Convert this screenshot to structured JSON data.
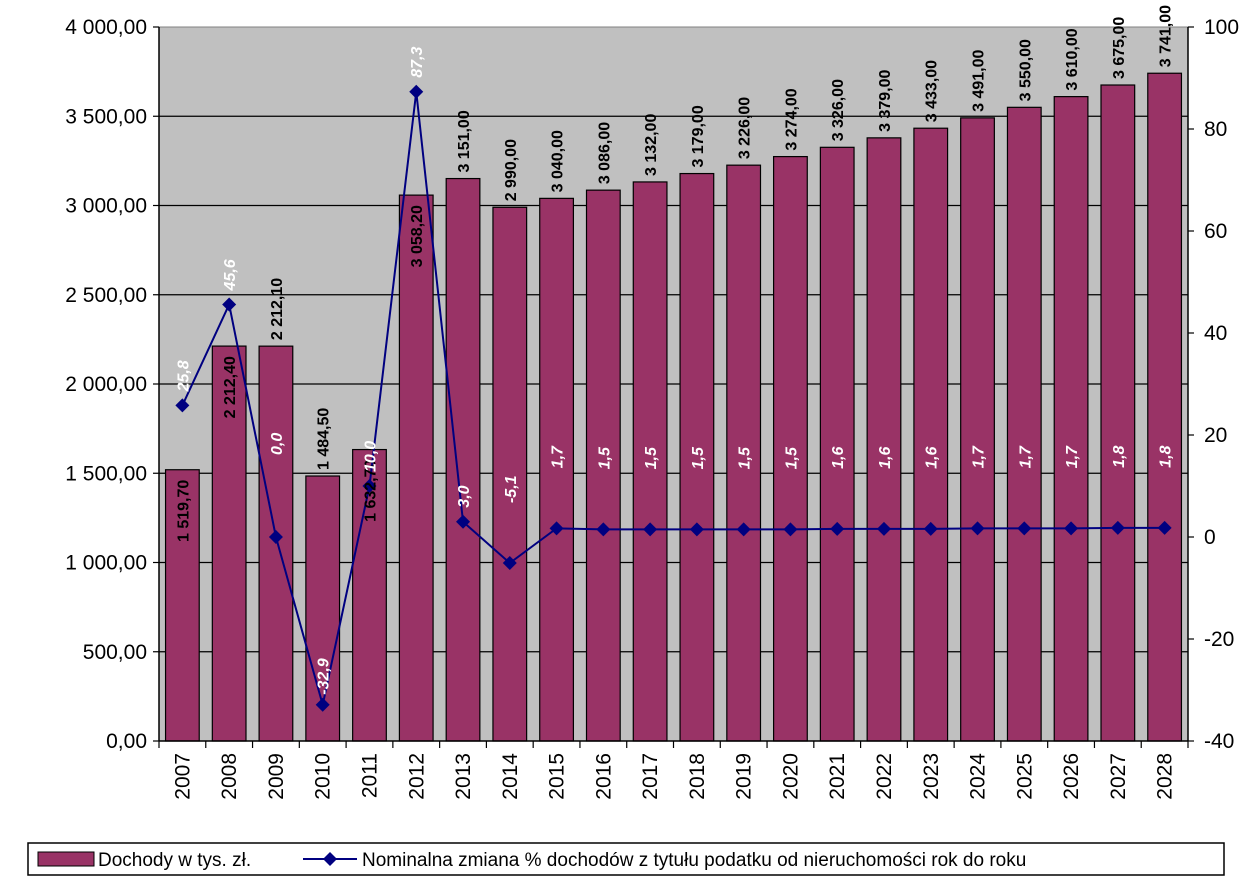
{
  "chart_data": {
    "type": "bar",
    "title": "",
    "xlabel": "",
    "ylabel": "",
    "categories": [
      "2007",
      "2008",
      "2009",
      "2010",
      "2011",
      "2012",
      "2013",
      "2014",
      "2015",
      "2016",
      "2017",
      "2018",
      "2019",
      "2020",
      "2021",
      "2022",
      "2023",
      "2024",
      "2025",
      "2026",
      "2027",
      "2028"
    ],
    "ylim": [
      0,
      4000
    ],
    "y2lim": [
      -40,
      100
    ],
    "y_ticks": [
      "0,00",
      "500,00",
      "1 000,00",
      "1 500,00",
      "2 000,00",
      "2 500,00",
      "3 000,00",
      "3 500,00",
      "4 000,00"
    ],
    "y2_ticks": [
      "-40",
      "-20",
      "0",
      "20",
      "40",
      "60",
      "80",
      "100"
    ],
    "grid": true,
    "plot_background": "#c0c0c0",
    "legend_position": "bottom",
    "series": [
      {
        "name": "Dochody w tys. zł.",
        "type": "bar",
        "axis": "left",
        "color": "#993366",
        "values": [
          1519.7,
          2212.4,
          2212.1,
          1484.5,
          1632.7,
          3058.2,
          3151.0,
          2990.0,
          3040.0,
          3086.0,
          3132.0,
          3179.0,
          3226.0,
          3274.0,
          3326.0,
          3379.0,
          3433.0,
          3491.0,
          3550.0,
          3610.0,
          3675.0,
          3741.0
        ],
        "labels": [
          "1 519,70",
          "2 212,40",
          "2 212,10",
          "1 484,50",
          "1 632,70",
          "3 058,20",
          "3 151,00",
          "2 990,00",
          "3 040,00",
          "3 086,00",
          "3 132,00",
          "3 179,00",
          "3 226,00",
          "3 274,00",
          "3 326,00",
          "3 379,00",
          "3 433,00",
          "3 491,00",
          "3 550,00",
          "3 610,00",
          "3 675,00",
          "3 741,00"
        ]
      },
      {
        "name": "Nominalna zmiana % dochodów z tytułu podatku od nieruchomości rok do roku",
        "type": "line",
        "axis": "right",
        "color": "#000080",
        "marker": "diamond",
        "values": [
          25.8,
          45.6,
          0.0,
          -32.9,
          10.0,
          87.3,
          3.0,
          -5.1,
          1.7,
          1.5,
          1.5,
          1.5,
          1.5,
          1.5,
          1.6,
          1.6,
          1.6,
          1.7,
          1.7,
          1.7,
          1.8,
          1.8
        ],
        "labels": [
          "25,8",
          "45,6",
          "0,0",
          "-32,9",
          "10,0",
          "87,3",
          "3,0",
          "-5,1",
          "1,7",
          "1,5",
          "1,5",
          "1,5",
          "1,5",
          "1,5",
          "1,6",
          "1,6",
          "1,6",
          "1,7",
          "1,7",
          "1,7",
          "1,8",
          "1,8"
        ]
      }
    ]
  }
}
